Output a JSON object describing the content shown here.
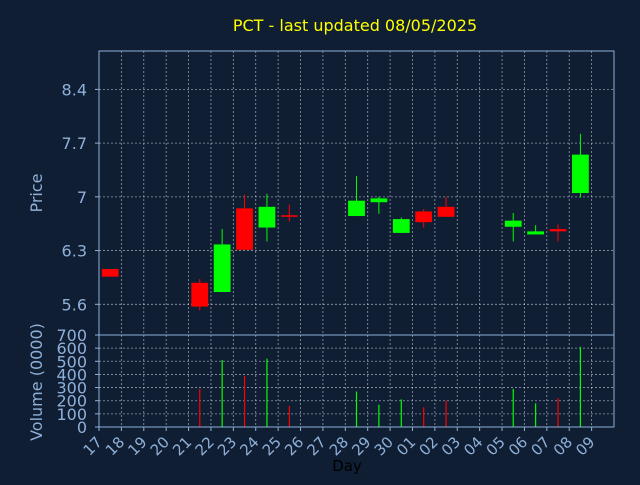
{
  "colors": {
    "background": "#0f1e33",
    "title": "#ffff00",
    "axis_text": "#8fb0d8",
    "frame": "#8fb0d8",
    "grid": "#c8d0dc",
    "up": "#00ff00",
    "down": "#ff0000"
  },
  "chart_data": {
    "type": "candlestick",
    "title": "PCT - last updated 08/05/2025",
    "grid": true,
    "price_panel": {
      "ylabel": "Price",
      "ylim": [
        5.2,
        8.9
      ],
      "yticks": [
        "5.6",
        "6.3",
        "7",
        "7.7",
        "8.4"
      ],
      "candles": [
        {
          "day": "17",
          "open": 6.06,
          "high": 6.06,
          "low": 5.96,
          "close": 5.96
        },
        {
          "day": "21",
          "open": 5.88,
          "high": 5.93,
          "low": 5.52,
          "close": 5.57
        },
        {
          "day": "22",
          "open": 5.76,
          "high": 6.58,
          "low": 5.76,
          "close": 6.38
        },
        {
          "day": "23",
          "open": 6.85,
          "high": 7.03,
          "low": 6.31,
          "close": 6.31
        },
        {
          "day": "24",
          "open": 6.6,
          "high": 7.04,
          "low": 6.42,
          "close": 6.87
        },
        {
          "day": "25",
          "open": 6.76,
          "high": 6.9,
          "low": 6.68,
          "close": 6.74
        },
        {
          "day": "28",
          "open": 6.75,
          "high": 7.27,
          "low": 6.75,
          "close": 6.95
        },
        {
          "day": "29",
          "open": 6.93,
          "high": 7.0,
          "low": 6.78,
          "close": 6.98
        },
        {
          "day": "30",
          "open": 6.53,
          "high": 6.73,
          "low": 6.53,
          "close": 6.71
        },
        {
          "day": "01",
          "open": 6.81,
          "high": 6.84,
          "low": 6.6,
          "close": 6.67
        },
        {
          "day": "02",
          "open": 6.87,
          "high": 7.0,
          "low": 6.74,
          "close": 6.74
        },
        {
          "day": "05",
          "open": 6.61,
          "high": 6.79,
          "low": 6.42,
          "close": 6.69
        },
        {
          "day": "06",
          "open": 6.51,
          "high": 6.63,
          "low": 6.51,
          "close": 6.55
        },
        {
          "day": "07",
          "open": 6.58,
          "high": 6.64,
          "low": 6.42,
          "close": 6.55
        },
        {
          "day": "08",
          "open": 7.05,
          "high": 7.82,
          "low": 6.99,
          "close": 7.55
        }
      ]
    },
    "volume_panel": {
      "ylabel": "Volume (0000)",
      "ylim": [
        0,
        700
      ],
      "yticks": [
        "0",
        "100",
        "200",
        "300",
        "400",
        "500",
        "600",
        "700"
      ],
      "bars": [
        {
          "day": "21",
          "value": 290,
          "direction": "down"
        },
        {
          "day": "22",
          "value": 510,
          "direction": "up"
        },
        {
          "day": "23",
          "value": 390,
          "direction": "down"
        },
        {
          "day": "24",
          "value": 520,
          "direction": "up"
        },
        {
          "day": "25",
          "value": 160,
          "direction": "down"
        },
        {
          "day": "28",
          "value": 270,
          "direction": "up"
        },
        {
          "day": "29",
          "value": 170,
          "direction": "up"
        },
        {
          "day": "30",
          "value": 210,
          "direction": "up"
        },
        {
          "day": "01",
          "value": 150,
          "direction": "down"
        },
        {
          "day": "02",
          "value": 200,
          "direction": "down"
        },
        {
          "day": "05",
          "value": 290,
          "direction": "up"
        },
        {
          "day": "06",
          "value": 180,
          "direction": "up"
        },
        {
          "day": "07",
          "value": 220,
          "direction": "down"
        },
        {
          "day": "08",
          "value": 610,
          "direction": "up"
        }
      ]
    },
    "x_axis": {
      "xlabel": "Day",
      "categories": [
        "17",
        "18",
        "19",
        "20",
        "21",
        "22",
        "23",
        "24",
        "25",
        "26",
        "27",
        "28",
        "29",
        "30",
        "01",
        "02",
        "03",
        "04",
        "05",
        "06",
        "07",
        "08",
        "09"
      ]
    }
  }
}
